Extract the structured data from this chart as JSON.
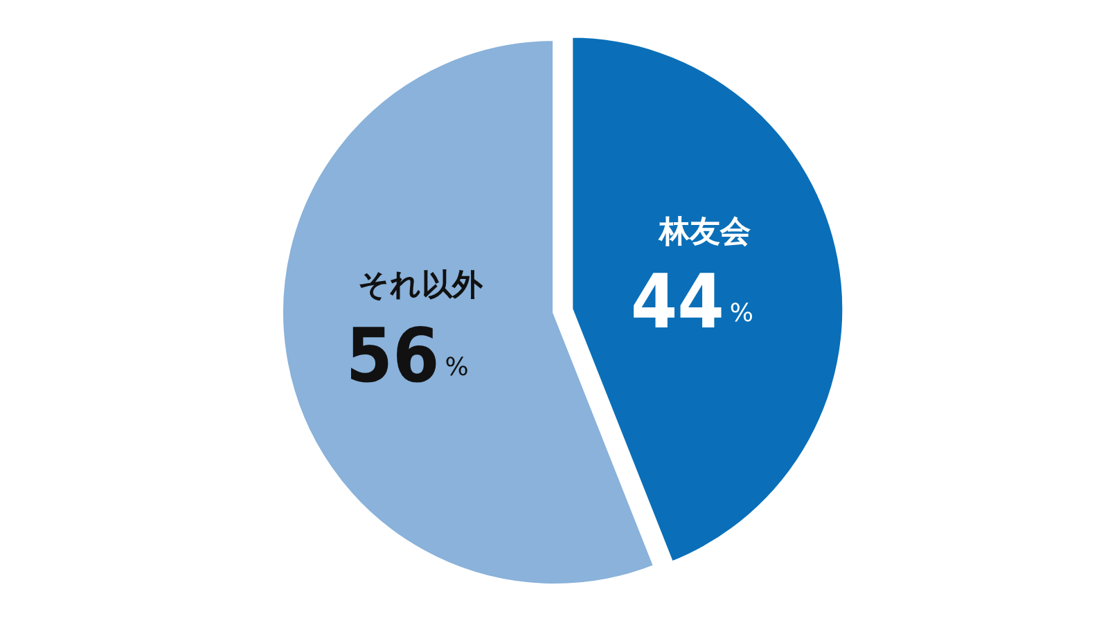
{
  "chart_data": {
    "type": "pie",
    "categories": [
      "林友会",
      "それ以外"
    ],
    "values": [
      44,
      56
    ],
    "colors": [
      "#0a6fb8",
      "#8ab2da"
    ],
    "value_labels": [
      "44%",
      "56%"
    ]
  }
}
